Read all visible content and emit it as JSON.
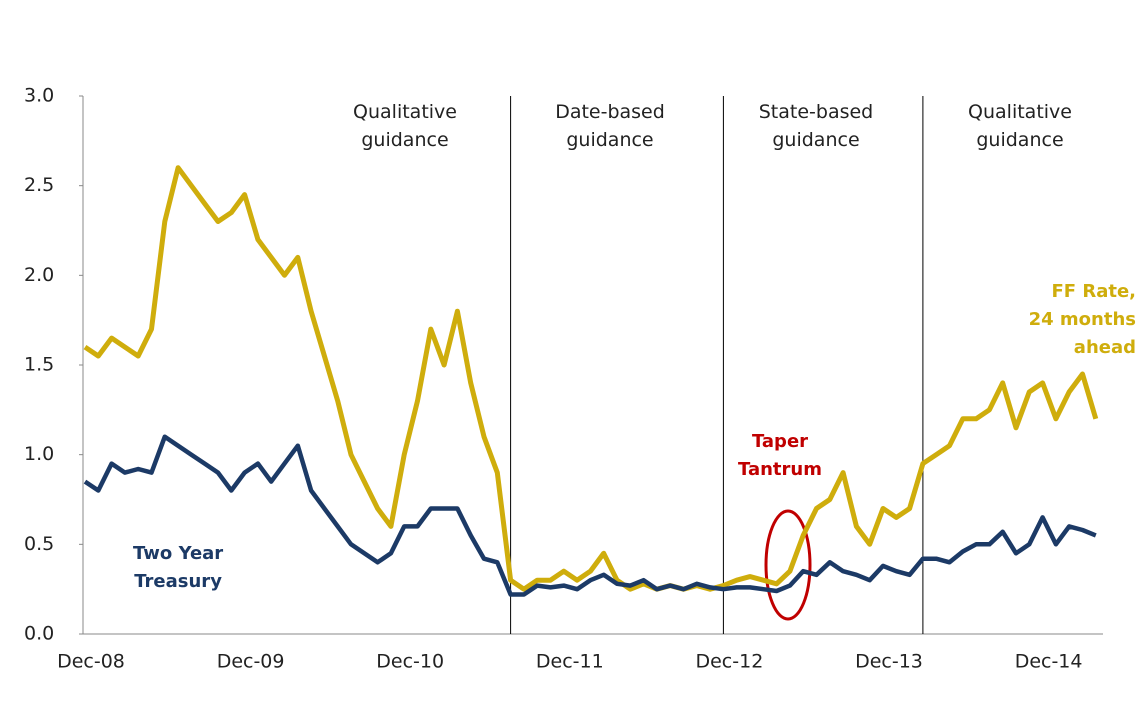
{
  "chart_data": {
    "type": "line",
    "x": [
      "Dec-08",
      "Jan-09",
      "Feb-09",
      "Mar-09",
      "Apr-09",
      "May-09",
      "Jun-09",
      "Jul-09",
      "Aug-09",
      "Sep-09",
      "Oct-09",
      "Nov-09",
      "Dec-09",
      "Jan-10",
      "Feb-10",
      "Mar-10",
      "Apr-10",
      "May-10",
      "Jun-10",
      "Jul-10",
      "Aug-10",
      "Sep-10",
      "Oct-10",
      "Nov-10",
      "Dec-10",
      "Jan-11",
      "Feb-11",
      "Mar-11",
      "Apr-11",
      "May-11",
      "Jun-11",
      "Jul-11",
      "Aug-11",
      "Sep-11",
      "Oct-11",
      "Nov-11",
      "Dec-11",
      "Jan-12",
      "Feb-12",
      "Mar-12",
      "Apr-12",
      "May-12",
      "Jun-12",
      "Jul-12",
      "Aug-12",
      "Sep-12",
      "Oct-12",
      "Nov-12",
      "Dec-12",
      "Jan-13",
      "Feb-13",
      "Mar-13",
      "Apr-13",
      "May-13",
      "Jun-13",
      "Jul-13",
      "Aug-13",
      "Sep-13",
      "Oct-13",
      "Nov-13",
      "Dec-13",
      "Jan-14",
      "Feb-14",
      "Mar-14",
      "Apr-14",
      "May-14",
      "Jun-14",
      "Jul-14",
      "Aug-14",
      "Sep-14",
      "Oct-14",
      "Nov-14",
      "Dec-14",
      "Jan-15",
      "Feb-15",
      "Mar-15",
      "Apr-15"
    ],
    "xticks": [
      "Dec-08",
      "Dec-09",
      "Dec-10",
      "Dec-11",
      "Dec-12",
      "Dec-13",
      "Dec-14"
    ],
    "series": [
      {
        "name": "FF Rate,\n24 months ahead",
        "color": "#cfad0c",
        "values": [
          1.6,
          1.55,
          1.65,
          1.6,
          1.55,
          1.7,
          2.3,
          2.6,
          2.5,
          2.4,
          2.3,
          2.35,
          2.45,
          2.2,
          2.1,
          2.0,
          2.1,
          1.8,
          1.55,
          1.3,
          1.0,
          0.85,
          0.7,
          0.6,
          1.0,
          1.3,
          1.7,
          1.5,
          1.8,
          1.4,
          1.1,
          0.9,
          0.3,
          0.25,
          0.3,
          0.3,
          0.35,
          0.3,
          0.35,
          0.45,
          0.3,
          0.25,
          0.28,
          0.25,
          0.27,
          0.25,
          0.27,
          0.25,
          0.27,
          0.3,
          0.32,
          0.3,
          0.28,
          0.35,
          0.55,
          0.7,
          0.75,
          0.9,
          0.6,
          0.5,
          0.7,
          0.65,
          0.7,
          0.95,
          1.0,
          1.05,
          1.2,
          1.2,
          1.25,
          1.4,
          1.15,
          1.35,
          1.4,
          1.2,
          1.35,
          1.45,
          1.2
        ]
      },
      {
        "name": "Two Year\nTreasury",
        "color": "#1c3a66",
        "values": [
          0.85,
          0.8,
          0.95,
          0.9,
          0.92,
          0.9,
          1.1,
          1.05,
          1.0,
          0.95,
          0.9,
          0.8,
          0.9,
          0.95,
          0.85,
          0.95,
          1.05,
          0.8,
          0.7,
          0.6,
          0.5,
          0.45,
          0.4,
          0.45,
          0.6,
          0.6,
          0.7,
          0.7,
          0.7,
          0.55,
          0.42,
          0.4,
          0.22,
          0.22,
          0.27,
          0.26,
          0.27,
          0.25,
          0.3,
          0.33,
          0.28,
          0.27,
          0.3,
          0.25,
          0.27,
          0.25,
          0.28,
          0.26,
          0.25,
          0.26,
          0.26,
          0.25,
          0.24,
          0.27,
          0.35,
          0.33,
          0.4,
          0.35,
          0.33,
          0.3,
          0.38,
          0.35,
          0.33,
          0.42,
          0.42,
          0.4,
          0.46,
          0.5,
          0.5,
          0.57,
          0.45,
          0.5,
          0.65,
          0.5,
          0.6,
          0.58,
          0.55
        ]
      }
    ],
    "ylim": [
      0,
      3.0
    ],
    "yticks": [
      {
        "value": 0,
        "label": "0.0"
      },
      {
        "value": 0.5,
        "label": "0.5"
      },
      {
        "value": 1,
        "label": "1.0"
      },
      {
        "value": 1.5,
        "label": "1.5"
      },
      {
        "value": 2,
        "label": "2.0"
      },
      {
        "value": 2.5,
        "label": "2.5"
      },
      {
        "value": 3,
        "label": "3.0"
      }
    ],
    "grid": false,
    "dividers": [
      "Aug-11",
      "Dec-12",
      "Mar-14"
    ],
    "regions": [
      "Qualitative\nguidance",
      "Date-based\nguidance",
      "State-based\nguidance",
      "Qualitative\nguidance"
    ],
    "annotation": "Taper\nTantrum"
  }
}
